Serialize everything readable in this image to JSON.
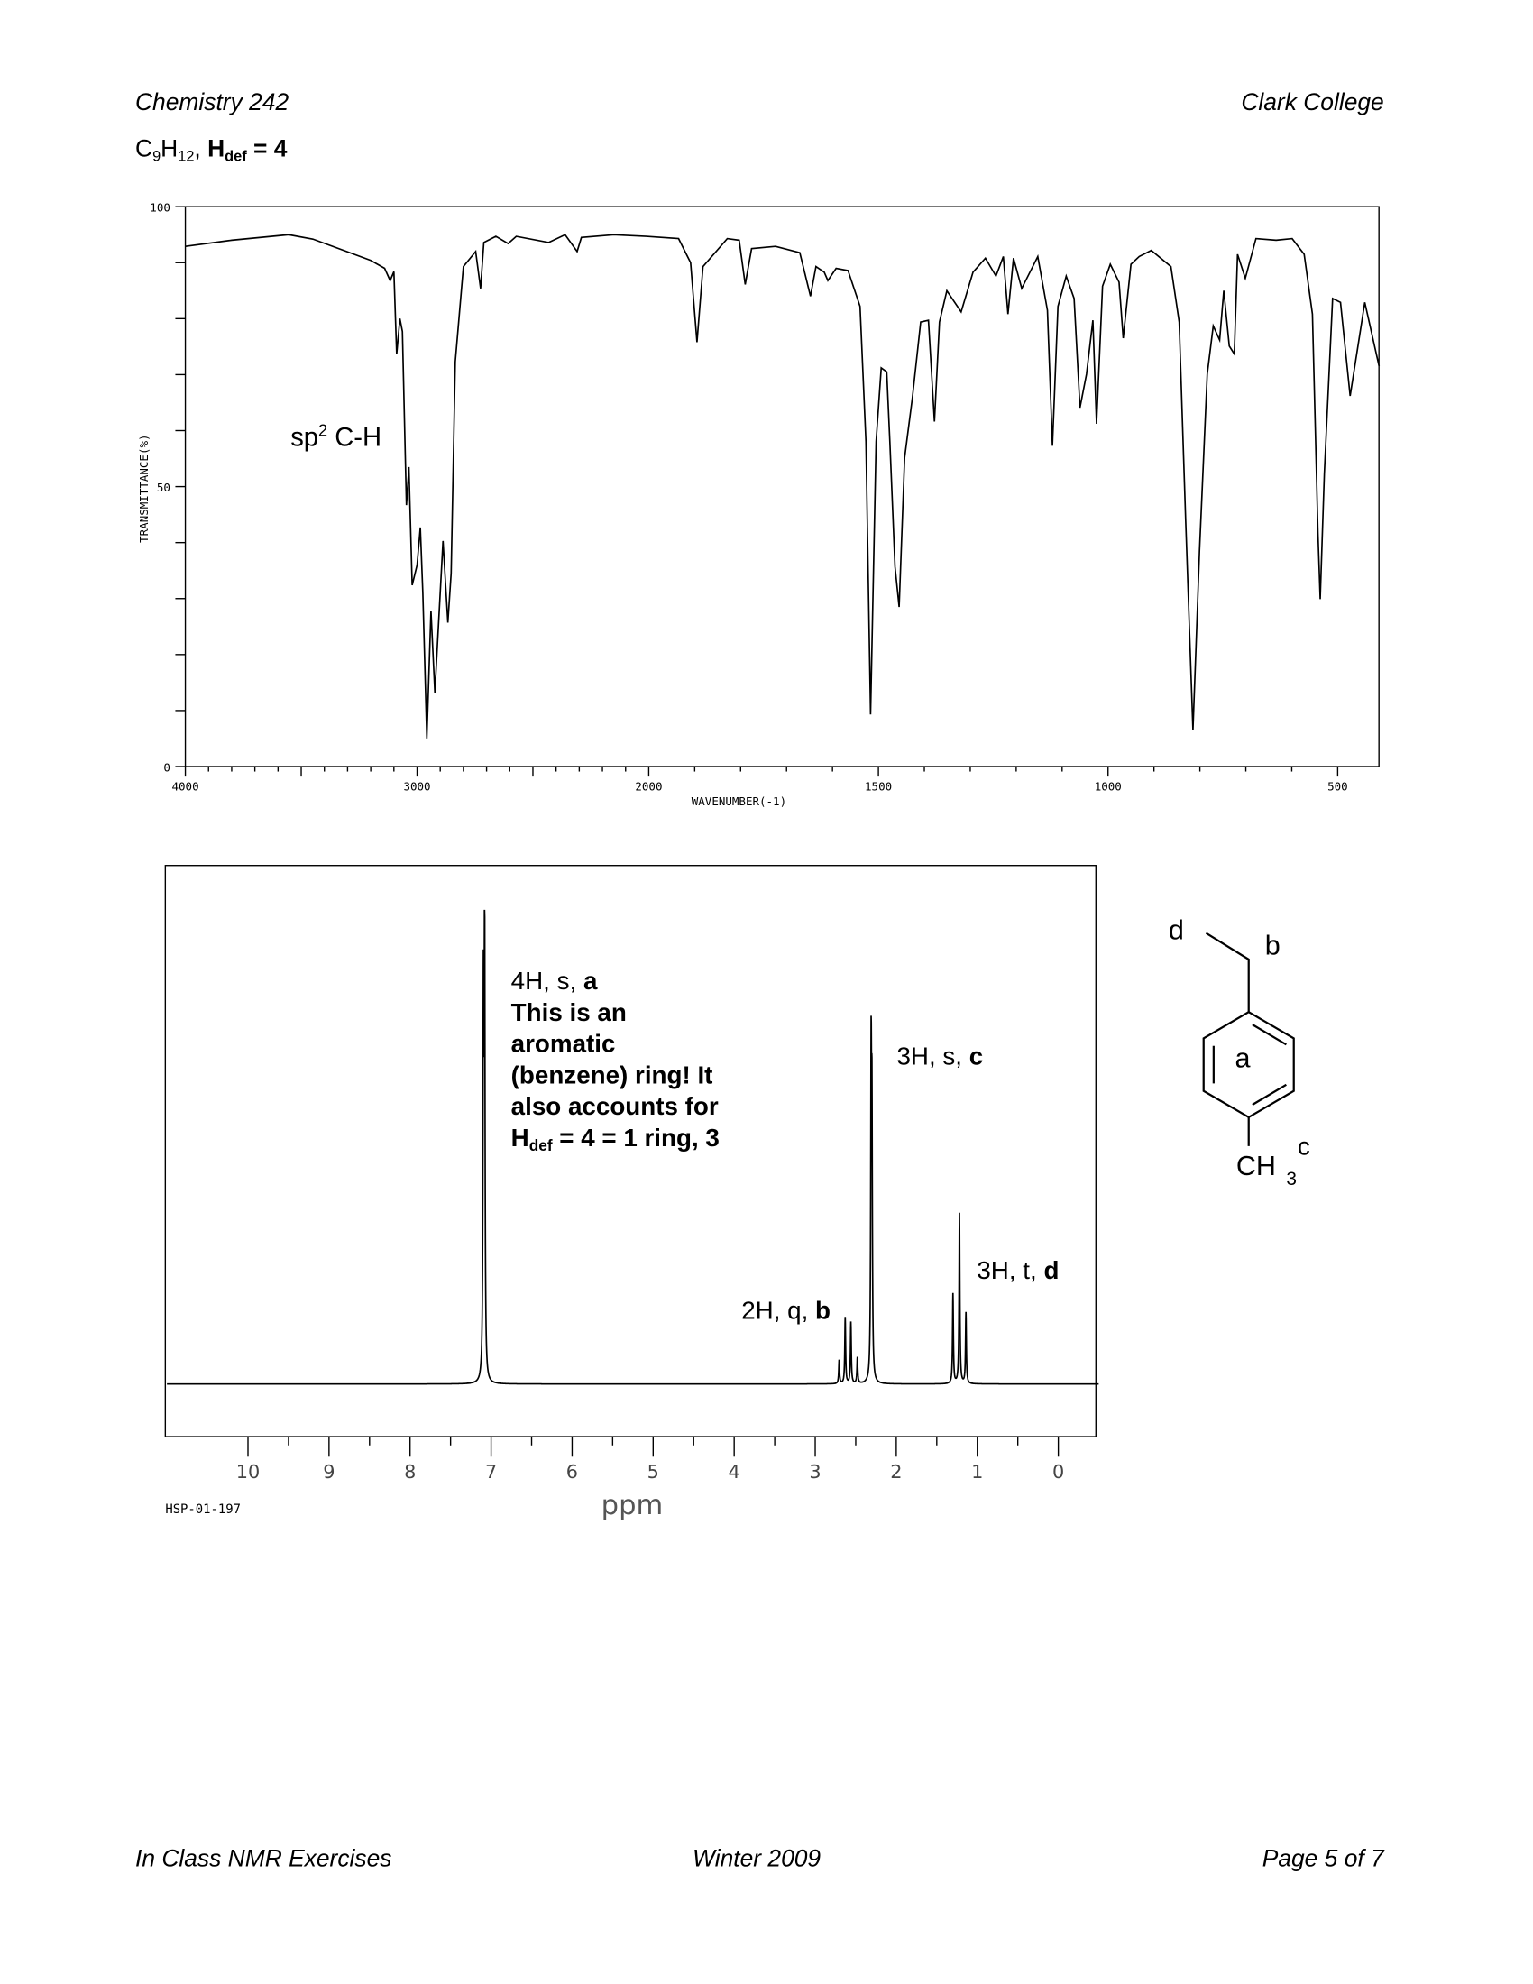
{
  "header": {
    "course": "Chemistry 242",
    "college": "Clark College",
    "formula": {
      "c": "C",
      "c_sub": "9",
      "h": "H",
      "h_sub": "12",
      "sep": ", ",
      "hdef": "H",
      "hdef_sub": "def",
      "hdef_val": " = 4"
    }
  },
  "footer": {
    "left": "In Class NMR Exercises",
    "center": "Winter 2009",
    "right": "Page 5 of 7"
  },
  "ir_annotation": {
    "text": "sp",
    "sup": "2",
    "rest": " C-H"
  },
  "nmr_annotations": {
    "a": {
      "l1": "4H, s, ",
      "l1b": "a",
      "l2": "This is an",
      "l3": "aromatic",
      "l4": "(benzene) ring!  It",
      "l5": "also accounts for",
      "l6a": "H",
      "l6sub": "def",
      "l6b": " = 4 = 1 ring, 3"
    },
    "c": {
      "t": "3H, s, ",
      "b": "c"
    },
    "b": {
      "t": "2H, q, ",
      "b": "b"
    },
    "d": {
      "t": "3H, t, ",
      "b": "d"
    }
  },
  "nmr_code": "HSP-01-197",
  "structure": {
    "label_d": "d",
    "label_b": "b",
    "label_a": "a",
    "ch": "CH",
    "ch_sub": "3",
    "label_c": "c"
  },
  "chart_data": [
    {
      "type": "line",
      "title": "",
      "xlabel": "WAVENUMBER(-1)",
      "ylabel": "TRANSMITTANCE(%)",
      "xlim": [
        4000,
        410
      ],
      "ylim": [
        0,
        100
      ],
      "x_ticks": [
        "4000",
        "3000",
        "2000",
        "1500",
        "1000",
        "500"
      ],
      "y_ticks": [
        "100",
        "50",
        "0"
      ],
      "grid": false,
      "line_color": "#000000",
      "points": [
        [
          4000,
          92.9
        ],
        [
          3800,
          94
        ],
        [
          3554,
          95
        ],
        [
          3450,
          94.2
        ],
        [
          3200,
          90.4
        ],
        [
          3140,
          89
        ],
        [
          3116,
          86.8
        ],
        [
          3100,
          88.4
        ],
        [
          3088,
          73.7
        ],
        [
          3074,
          80
        ],
        [
          3063,
          77.7
        ],
        [
          3046,
          46.7
        ],
        [
          3035,
          53.5
        ],
        [
          3021,
          32.4
        ],
        [
          3000,
          36
        ],
        [
          2986,
          42.7
        ],
        [
          2975,
          31
        ],
        [
          2958,
          5
        ],
        [
          2940,
          27.8
        ],
        [
          2923,
          13.2
        ],
        [
          2888,
          40.3
        ],
        [
          2867,
          25.7
        ],
        [
          2853,
          34.5
        ],
        [
          2835,
          72.3
        ],
        [
          2800,
          89.3
        ],
        [
          2747,
          92
        ],
        [
          2726,
          85.4
        ],
        [
          2712,
          93.6
        ],
        [
          2660,
          94.7
        ],
        [
          2607,
          93.4
        ],
        [
          2572,
          94.7
        ],
        [
          2432,
          93.6
        ],
        [
          2361,
          95
        ],
        [
          2309,
          92
        ],
        [
          2291,
          94.5
        ],
        [
          2151,
          95
        ],
        [
          2011,
          94.7
        ],
        [
          1935,
          94.3
        ],
        [
          1909,
          90
        ],
        [
          1895,
          75.8
        ],
        [
          1882,
          89.3
        ],
        [
          1829,
          94.3
        ],
        [
          1803,
          94
        ],
        [
          1790,
          86.1
        ],
        [
          1776,
          92.5
        ],
        [
          1724,
          92.9
        ],
        [
          1671,
          91.8
        ],
        [
          1648,
          84
        ],
        [
          1636,
          89.3
        ],
        [
          1618,
          88.3
        ],
        [
          1610,
          86.8
        ],
        [
          1592,
          89
        ],
        [
          1566,
          88.6
        ],
        [
          1540,
          82.2
        ],
        [
          1527,
          58
        ],
        [
          1517,
          9.3
        ],
        [
          1505,
          58
        ],
        [
          1494,
          71.2
        ],
        [
          1482,
          70.5
        ],
        [
          1475,
          58
        ],
        [
          1464,
          35.7
        ],
        [
          1455,
          28.5
        ],
        [
          1443,
          55.2
        ],
        [
          1426,
          65.9
        ],
        [
          1408,
          79.4
        ],
        [
          1391,
          79.7
        ],
        [
          1378,
          61.6
        ],
        [
          1367,
          79.4
        ],
        [
          1351,
          85
        ],
        [
          1320,
          81.2
        ],
        [
          1294,
          88.3
        ],
        [
          1267,
          90.8
        ],
        [
          1244,
          87.6
        ],
        [
          1228,
          91.1
        ],
        [
          1218,
          80.8
        ],
        [
          1206,
          90.8
        ],
        [
          1188,
          85.4
        ],
        [
          1153,
          91.1
        ],
        [
          1132,
          81.5
        ],
        [
          1121,
          57.3
        ],
        [
          1109,
          82.2
        ],
        [
          1091,
          87.6
        ],
        [
          1074,
          83.6
        ],
        [
          1061,
          64.1
        ],
        [
          1047,
          70.1
        ],
        [
          1033,
          79.7
        ],
        [
          1025,
          61.2
        ],
        [
          1012,
          85.8
        ],
        [
          995,
          89.7
        ],
        [
          976,
          86.5
        ],
        [
          967,
          76.5
        ],
        [
          950,
          89.7
        ],
        [
          932,
          91.1
        ],
        [
          906,
          92.2
        ],
        [
          863,
          89.3
        ],
        [
          845,
          79.4
        ],
        [
          831,
          43.8
        ],
        [
          815,
          6.5
        ],
        [
          801,
          38.4
        ],
        [
          784,
          70.1
        ],
        [
          771,
          78.7
        ],
        [
          757,
          76.2
        ],
        [
          748,
          85
        ],
        [
          736,
          75.1
        ],
        [
          725,
          73.7
        ],
        [
          718,
          91.5
        ],
        [
          701,
          87.2
        ],
        [
          678,
          94.3
        ],
        [
          634,
          94
        ],
        [
          599,
          94.3
        ],
        [
          573,
          91.5
        ],
        [
          555,
          80.8
        ],
        [
          543,
          41.7
        ],
        [
          538,
          29.9
        ],
        [
          529,
          52.3
        ],
        [
          511,
          83.6
        ],
        [
          494,
          82.9
        ],
        [
          473,
          66.2
        ],
        [
          441,
          82.9
        ],
        [
          410,
          71.5
        ]
      ]
    },
    {
      "type": "line",
      "title": "",
      "xlabel": "ppm",
      "ylabel": "",
      "xlim": [
        11,
        -0.5
      ],
      "x_ticks": [
        "10",
        "9",
        "8",
        "7",
        "6",
        "5",
        "4",
        "3",
        "2",
        "1",
        "0"
      ],
      "grid": false,
      "line_color": "#000000",
      "peaks": [
        [
          7.095,
          0.78
        ],
        [
          7.08,
          1.0
        ],
        [
          2.705,
          0.05
        ],
        [
          2.63,
          0.14
        ],
        [
          2.56,
          0.13
        ],
        [
          2.48,
          0.055
        ],
        [
          2.31,
          0.64
        ],
        [
          2.3,
          0.52
        ],
        [
          1.3,
          0.19
        ],
        [
          1.22,
          0.36
        ],
        [
          1.14,
          0.15
        ]
      ]
    }
  ]
}
